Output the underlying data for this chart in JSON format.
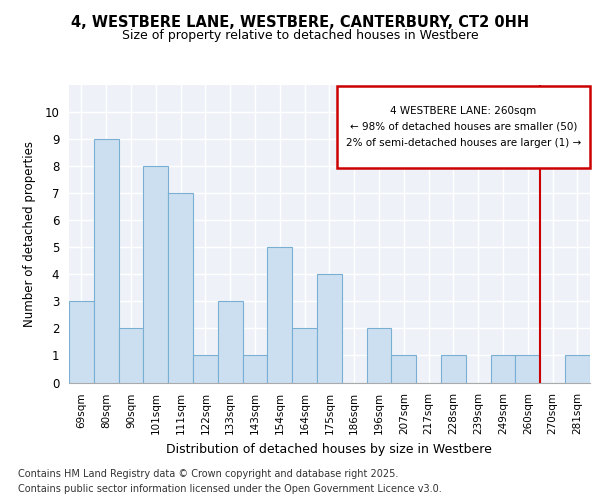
{
  "title": "4, WESTBERE LANE, WESTBERE, CANTERBURY, CT2 0HH",
  "subtitle": "Size of property relative to detached houses in Westbere",
  "xlabel": "Distribution of detached houses by size in Westbere",
  "ylabel": "Number of detached properties",
  "categories": [
    "69sqm",
    "80sqm",
    "90sqm",
    "101sqm",
    "111sqm",
    "122sqm",
    "133sqm",
    "143sqm",
    "154sqm",
    "164sqm",
    "175sqm",
    "186sqm",
    "196sqm",
    "207sqm",
    "217sqm",
    "228sqm",
    "239sqm",
    "249sqm",
    "260sqm",
    "270sqm",
    "281sqm"
  ],
  "values": [
    3,
    9,
    2,
    8,
    7,
    1,
    3,
    1,
    5,
    2,
    4,
    0,
    2,
    1,
    0,
    1,
    0,
    1,
    1,
    0,
    1
  ],
  "bar_color": "#ccdff0",
  "bar_edge_color": "#7aafd4",
  "highlight_color": "#cc0000",
  "annotation_title": "4 WESTBERE LANE: 260sqm",
  "annotation_line1": "← 98% of detached houses are smaller (50)",
  "annotation_line2": "2% of semi-detached houses are larger (1) →",
  "ylim": [
    0,
    11
  ],
  "yticks": [
    0,
    1,
    2,
    3,
    4,
    5,
    6,
    7,
    8,
    9,
    10,
    11
  ],
  "footer1": "Contains HM Land Registry data © Crown copyright and database right 2025.",
  "footer2": "Contains public sector information licensed under the Open Government Licence v3.0.",
  "bg_color": "#ffffff",
  "plot_bg_color": "#eef2f8"
}
